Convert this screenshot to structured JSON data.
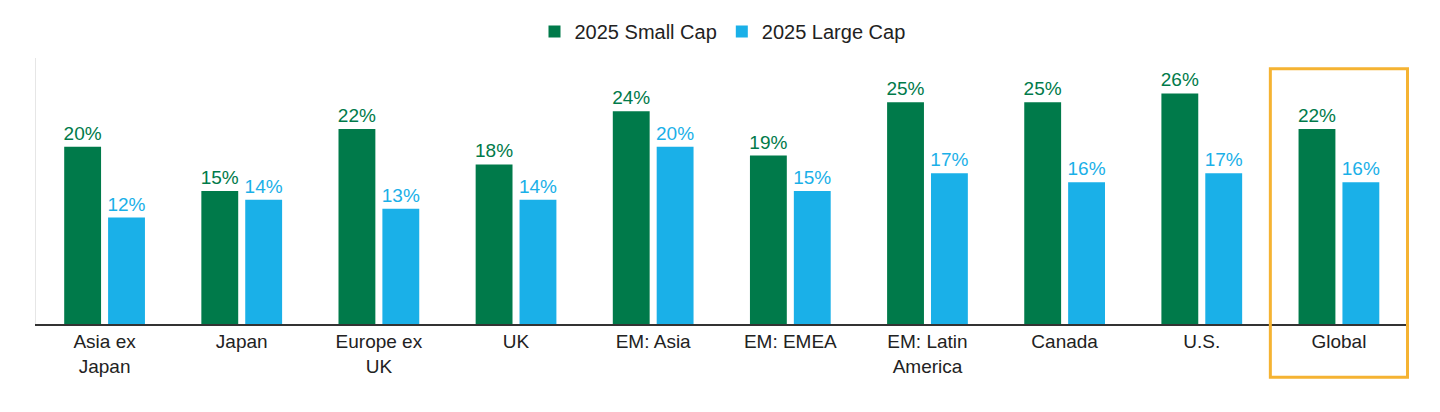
{
  "chart_data": {
    "type": "bar",
    "categories": [
      "Asia ex Japan",
      "Japan",
      "Europe ex UK",
      "UK",
      "EM: Asia",
      "EM: EMEA",
      "EM: Latin America",
      "Canada",
      "U.S.",
      "Global"
    ],
    "series": [
      {
        "name": "2025 Small Cap",
        "color": "#007a4a",
        "values": [
          20,
          15,
          22,
          18,
          24,
          19,
          25,
          25,
          26,
          22
        ],
        "value_labels": [
          "20%",
          "15%",
          "22%",
          "18%",
          "24%",
          "19%",
          "25%",
          "25%",
          "26%",
          "22%"
        ]
      },
      {
        "name": "2025 Large Cap",
        "color": "#1ab0e8",
        "values": [
          12,
          14,
          13,
          14,
          20,
          15,
          17,
          16,
          17,
          16
        ],
        "value_labels": [
          "12%",
          "14%",
          "13%",
          "14%",
          "20%",
          "15%",
          "17%",
          "16%",
          "17%",
          "16%"
        ]
      }
    ],
    "ylim": [
      0,
      30
    ],
    "grid": false,
    "legend": "top",
    "data_labels": true,
    "tick_labels": "x"
  }
}
